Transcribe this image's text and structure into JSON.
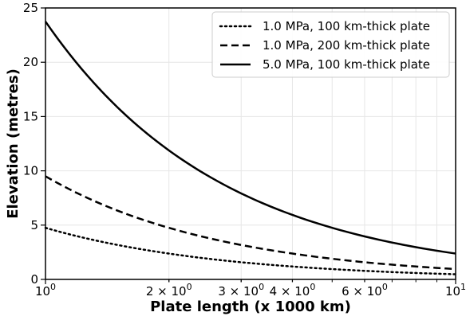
{
  "chart_data": {
    "type": "line",
    "xscale": "log",
    "xlim": [
      1,
      10
    ],
    "ylim": [
      0,
      25
    ],
    "xlabel": "Plate length (x 1000 km)",
    "ylabel": "Elevation (metres)",
    "grid": true,
    "legend_position": "top-right",
    "x_ticks": [
      {
        "value": 1,
        "base": "10",
        "exp": "0",
        "coef": ""
      },
      {
        "value": 2,
        "base": "10",
        "exp": "0",
        "coef": "2 × "
      },
      {
        "value": 3,
        "base": "10",
        "exp": "0",
        "coef": "3 × "
      },
      {
        "value": 4,
        "base": "10",
        "exp": "0",
        "coef": "4 × "
      },
      {
        "value": 6,
        "base": "10",
        "exp": "0",
        "coef": "6 × "
      },
      {
        "value": 10,
        "base": "10",
        "exp": "1",
        "coef": ""
      }
    ],
    "y_ticks": [
      0,
      5,
      10,
      15,
      20,
      25
    ],
    "x": [
      1,
      1.5,
      2,
      3,
      4,
      6,
      8,
      10
    ],
    "series": [
      {
        "name": "1.0 MPa, 100 km-thick plate",
        "style": "dotted",
        "values": [
          4.75,
          3.17,
          2.38,
          1.58,
          1.19,
          0.79,
          0.59,
          0.475
        ]
      },
      {
        "name": "1.0 MPa, 200 km-thick plate",
        "style": "dashed",
        "values": [
          9.5,
          6.33,
          4.75,
          3.17,
          2.38,
          1.58,
          1.19,
          0.95
        ]
      },
      {
        "name": "5.0 MPa, 100 km-thick plate",
        "style": "solid",
        "values": [
          23.75,
          15.83,
          11.88,
          7.92,
          5.94,
          3.96,
          2.97,
          2.38
        ]
      }
    ],
    "colors": {
      "line": "#000000",
      "grid": "#e6e6e6",
      "axis": "#000000"
    }
  }
}
